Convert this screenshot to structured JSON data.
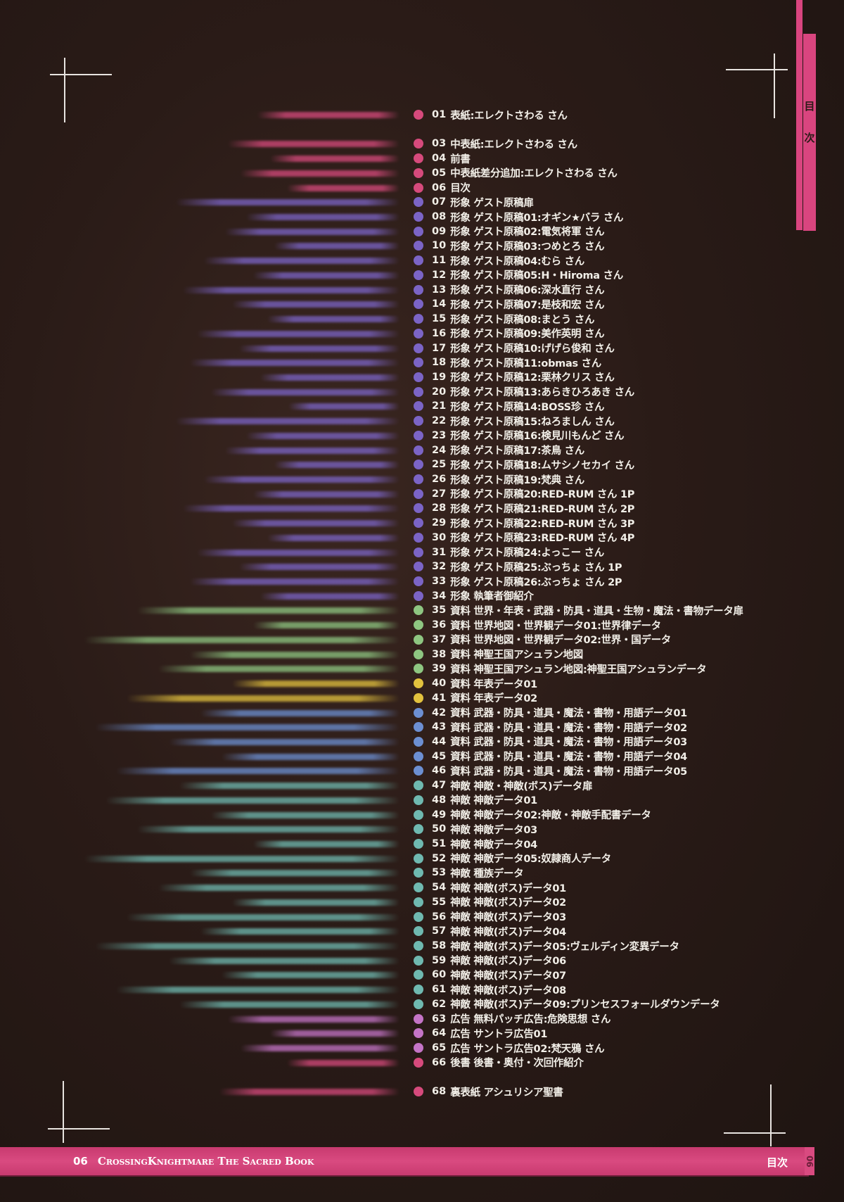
{
  "side_tab": {
    "label": "目次",
    "color": "#d9457f"
  },
  "footer": {
    "page_number": "06",
    "book_title": "CrossingKnightmare The Sacred Book",
    "section": "目次",
    "edge_page": "06"
  },
  "category_colors": {
    "cover": "#d64a7c",
    "guest": "#7b64c6",
    "material_green": "#8ec681",
    "material_yellow": "#e3c23e",
    "material_blue": "#6c8fd2",
    "enemy": "#6fb9b0",
    "ad": "#c474c6"
  },
  "toc": [
    {
      "num": "01",
      "text": "表紙:エレクトさわる さん",
      "cat": "cover"
    },
    {
      "num": "03",
      "text": "中表紙:エレクトさわる さん",
      "cat": "cover"
    },
    {
      "num": "04",
      "text": "前書",
      "cat": "cover"
    },
    {
      "num": "05",
      "text": "中表紙差分追加:エレクトさわる さん",
      "cat": "cover"
    },
    {
      "num": "06",
      "text": "目次",
      "cat": "cover"
    },
    {
      "num": "07",
      "text": "形象 ゲスト原稿扉",
      "cat": "guest"
    },
    {
      "num": "08",
      "text": "形象 ゲスト原稿01:オギン★バラ さん",
      "cat": "guest"
    },
    {
      "num": "09",
      "text": "形象 ゲスト原稿02:電気将軍 さん",
      "cat": "guest"
    },
    {
      "num": "10",
      "text": "形象 ゲスト原稿03:つめとろ さん",
      "cat": "guest"
    },
    {
      "num": "11",
      "text": "形象 ゲスト原稿04:むら さん",
      "cat": "guest"
    },
    {
      "num": "12",
      "text": "形象 ゲスト原稿05:H・Hiroma さん",
      "cat": "guest"
    },
    {
      "num": "13",
      "text": "形象 ゲスト原稿06:深水直行 さん",
      "cat": "guest"
    },
    {
      "num": "14",
      "text": "形象 ゲスト原稿07:是枝和宏 さん",
      "cat": "guest"
    },
    {
      "num": "15",
      "text": "形象 ゲスト原稿08:まとう さん",
      "cat": "guest"
    },
    {
      "num": "16",
      "text": "形象 ゲスト原稿09:美作英明 さん",
      "cat": "guest"
    },
    {
      "num": "17",
      "text": "形象 ゲスト原稿10:げげら俊和 さん",
      "cat": "guest"
    },
    {
      "num": "18",
      "text": "形象 ゲスト原稿11:obmas さん",
      "cat": "guest"
    },
    {
      "num": "19",
      "text": "形象 ゲスト原稿12:栗林クリス さん",
      "cat": "guest"
    },
    {
      "num": "20",
      "text": "形象 ゲスト原稿13:あらきひろあき さん",
      "cat": "guest"
    },
    {
      "num": "21",
      "text": "形象 ゲスト原稿14:BOSS珍 さん",
      "cat": "guest"
    },
    {
      "num": "22",
      "text": "形象 ゲスト原稿15:ねろましん さん",
      "cat": "guest"
    },
    {
      "num": "23",
      "text": "形象 ゲスト原稿16:検見川もんど さん",
      "cat": "guest"
    },
    {
      "num": "24",
      "text": "形象 ゲスト原稿17:茶鳥 さん",
      "cat": "guest"
    },
    {
      "num": "25",
      "text": "形象 ゲスト原稿18:ムサシノセカイ さん",
      "cat": "guest"
    },
    {
      "num": "26",
      "text": "形象 ゲスト原稿19:梵典 さん",
      "cat": "guest"
    },
    {
      "num": "27",
      "text": "形象 ゲスト原稿20:RED-RUM さん 1P",
      "cat": "guest"
    },
    {
      "num": "28",
      "text": "形象 ゲスト原稿21:RED-RUM さん 2P",
      "cat": "guest"
    },
    {
      "num": "29",
      "text": "形象 ゲスト原稿22:RED-RUM さん 3P",
      "cat": "guest"
    },
    {
      "num": "30",
      "text": "形象 ゲスト原稿23:RED-RUM さん 4P",
      "cat": "guest"
    },
    {
      "num": "31",
      "text": "形象 ゲスト原稿24:よっこー さん",
      "cat": "guest"
    },
    {
      "num": "32",
      "text": "形象 ゲスト原稿25:ぶっちょ さん 1P",
      "cat": "guest"
    },
    {
      "num": "33",
      "text": "形象 ゲスト原稿26:ぶっちょ さん 2P",
      "cat": "guest"
    },
    {
      "num": "34",
      "text": "形象 執筆者御紹介",
      "cat": "guest"
    },
    {
      "num": "35",
      "text": "資料 世界・年表・武器・防具・道具・生物・魔法・書物データ扉",
      "cat": "material_green"
    },
    {
      "num": "36",
      "text": "資料 世界地図・世界観データ01:世界律データ",
      "cat": "material_green"
    },
    {
      "num": "37",
      "text": "資料 世界地図・世界観データ02:世界・国データ",
      "cat": "material_green"
    },
    {
      "num": "38",
      "text": "資料 神聖王国アシュラン地図",
      "cat": "material_green"
    },
    {
      "num": "39",
      "text": "資料 神聖王国アシュラン地図:神聖王国アシュランデータ",
      "cat": "material_green"
    },
    {
      "num": "40",
      "text": "資料 年表データ01",
      "cat": "material_yellow"
    },
    {
      "num": "41",
      "text": "資料 年表データ02",
      "cat": "material_yellow"
    },
    {
      "num": "42",
      "text": "資料 武器・防具・道具・魔法・書物・用語データ01",
      "cat": "material_blue"
    },
    {
      "num": "43",
      "text": "資料 武器・防具・道具・魔法・書物・用語データ02",
      "cat": "material_blue"
    },
    {
      "num": "44",
      "text": "資料 武器・防具・道具・魔法・書物・用語データ03",
      "cat": "material_blue"
    },
    {
      "num": "45",
      "text": "資料 武器・防具・道具・魔法・書物・用語データ04",
      "cat": "material_blue"
    },
    {
      "num": "46",
      "text": "資料 武器・防具・道具・魔法・書物・用語データ05",
      "cat": "material_blue"
    },
    {
      "num": "47",
      "text": "神敵 神敵・神敵(ボス)データ扉",
      "cat": "enemy"
    },
    {
      "num": "48",
      "text": "神敵 神敵データ01",
      "cat": "enemy"
    },
    {
      "num": "49",
      "text": "神敵 神敵データ02:神敵・神敵手配書データ",
      "cat": "enemy"
    },
    {
      "num": "50",
      "text": "神敵 神敵データ03",
      "cat": "enemy"
    },
    {
      "num": "51",
      "text": "神敵 神敵データ04",
      "cat": "enemy"
    },
    {
      "num": "52",
      "text": "神敵 神敵データ05:奴隷商人データ",
      "cat": "enemy"
    },
    {
      "num": "53",
      "text": "神敵 種族データ",
      "cat": "enemy"
    },
    {
      "num": "54",
      "text": "神敵 神敵(ボス)データ01",
      "cat": "enemy"
    },
    {
      "num": "55",
      "text": "神敵 神敵(ボス)データ02",
      "cat": "enemy"
    },
    {
      "num": "56",
      "text": "神敵 神敵(ボス)データ03",
      "cat": "enemy"
    },
    {
      "num": "57",
      "text": "神敵 神敵(ボス)データ04",
      "cat": "enemy"
    },
    {
      "num": "58",
      "text": "神敵 神敵(ボス)データ05:ヴェルディン変異データ",
      "cat": "enemy"
    },
    {
      "num": "59",
      "text": "神敵 神敵(ボス)データ06",
      "cat": "enemy"
    },
    {
      "num": "60",
      "text": "神敵 神敵(ボス)データ07",
      "cat": "enemy"
    },
    {
      "num": "61",
      "text": "神敵 神敵(ボス)データ08",
      "cat": "enemy"
    },
    {
      "num": "62",
      "text": "神敵 神敵(ボス)データ09:プリンセスフォールダウンデータ",
      "cat": "enemy"
    },
    {
      "num": "63",
      "text": "広告 無料パッチ広告:危険思想 さん",
      "cat": "ad"
    },
    {
      "num": "64",
      "text": "広告 サントラ広告01",
      "cat": "ad"
    },
    {
      "num": "65",
      "text": "広告 サントラ広告02:梵天鴉 さん",
      "cat": "ad"
    },
    {
      "num": "66",
      "text": "後書 後書・奥付・次回作紹介",
      "cat": "cover"
    },
    {
      "num": "68",
      "text": "裏表紙 アシュリシア聖書",
      "cat": "cover"
    }
  ]
}
